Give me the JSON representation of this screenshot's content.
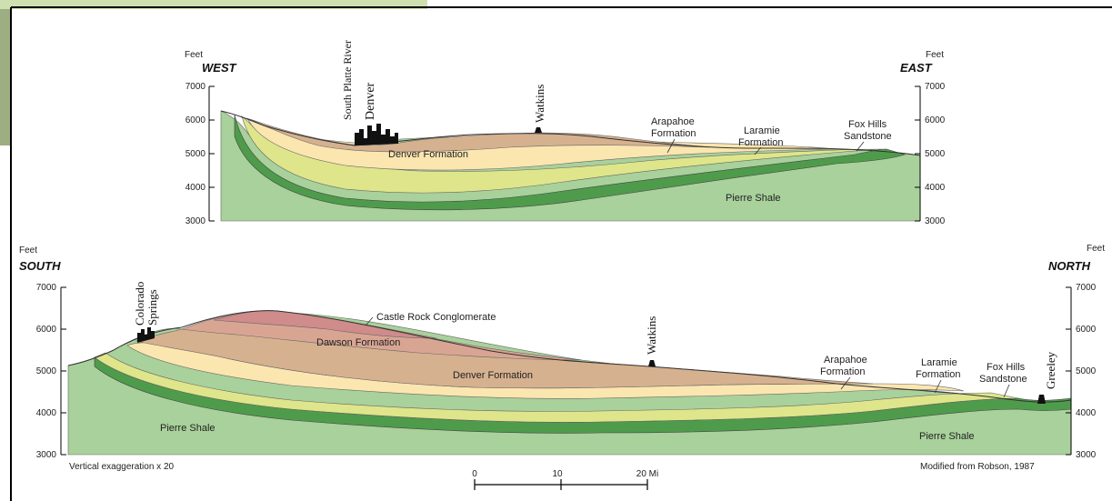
{
  "top_section": {
    "units_left": "Feet",
    "units_right": "Feet",
    "direction_left": "WEST",
    "direction_right": "EAST",
    "axis_ticks_left": [
      "7000",
      "6000",
      "5000",
      "4000",
      "3000"
    ],
    "axis_ticks_right": [
      "7000",
      "6000",
      "5000",
      "4000",
      "3000"
    ],
    "city_labels": [
      "South Platte River",
      "Denver",
      "Watkins"
    ],
    "formation_labels": {
      "denver": "Denver Formation",
      "arapahoe_1": "Arapahoe",
      "arapahoe_2": "Formation",
      "laramie_1": "Laramie",
      "laramie_2": "Formation",
      "foxhills_1": "Fox Hills",
      "foxhills_2": "Sandstone",
      "pierre": "Pierre Shale"
    }
  },
  "bottom_section": {
    "units_left": "Feet",
    "units_right": "Feet",
    "direction_left": "SOUTH",
    "direction_right": "NORTH",
    "axis_ticks_left": [
      "7000",
      "6000",
      "5000",
      "4000",
      "3000"
    ],
    "axis_ticks_right": [
      "7000",
      "6000",
      "5000",
      "4000",
      "3000"
    ],
    "city_labels": [
      "Colorado",
      "Springs",
      "Watkins",
      "Greeley"
    ],
    "formation_labels": {
      "castle_rock": "Castle Rock Conglomerate",
      "dawson": "Dawson Formation",
      "denver": "Denver Formation",
      "arapahoe_1": "Arapahoe",
      "arapahoe_2": "Formation",
      "laramie_1": "Laramie",
      "laramie_2": "Formation",
      "foxhills_1": "Fox Hills",
      "foxhills_2": "Sandstone",
      "pierre_1": "Pierre Shale",
      "pierre_2": "Pierre Shale"
    },
    "exaggeration_note": "Vertical exaggeration x 20",
    "credit": "Modified from Robson, 1987",
    "scale_labels": [
      "0",
      "10",
      "20 Mi"
    ]
  },
  "colors": {
    "pierre_shale": "#a9d19b",
    "fox_hills": "#4f9b4c",
    "laramie": "#dfe58a",
    "arapahoe": "#fbe6b0",
    "denver": "#d6b18f",
    "dawson": "#d9a593",
    "castle_rock": "#cf8c8a"
  }
}
